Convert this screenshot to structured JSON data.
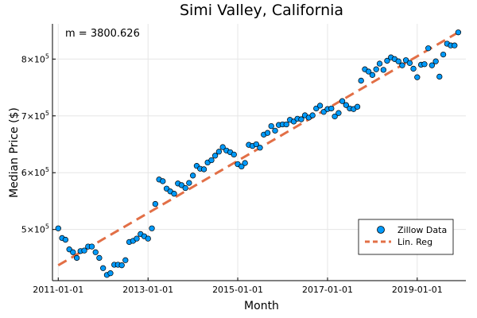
{
  "chart_data": {
    "type": "scatter",
    "title": "Simi Valley, California",
    "xlabel": "Month",
    "ylabel": "Median Price ($)",
    "annotation": "m = 3800.626",
    "xlim": [
      "2010-11-15",
      "2020-02-01"
    ],
    "ylim": [
      410000,
      862000
    ],
    "x_ticks": [
      "2011-01-01",
      "2013-01-01",
      "2015-01-01",
      "2017-01-01",
      "2019-01-01"
    ],
    "y_ticks": [
      {
        "value": 500000,
        "mantissa": "5",
        "exponent": "5"
      },
      {
        "value": 600000,
        "mantissa": "6",
        "exponent": "5"
      },
      {
        "value": 700000,
        "mantissa": "7",
        "exponent": "5"
      },
      {
        "value": 800000,
        "mantissa": "8",
        "exponent": "5"
      }
    ],
    "grid": true,
    "legend_position": "bottom-right",
    "series": [
      {
        "name": "Zillow Data",
        "kind": "scatter",
        "color": "#009AFA",
        "x": [
          "2011-01-01",
          "2011-02-01",
          "2011-03-01",
          "2011-04-01",
          "2011-05-01",
          "2011-06-01",
          "2011-07-01",
          "2011-08-01",
          "2011-09-01",
          "2011-10-01",
          "2011-11-01",
          "2011-12-01",
          "2012-01-01",
          "2012-02-01",
          "2012-03-01",
          "2012-04-01",
          "2012-05-01",
          "2012-06-01",
          "2012-07-01",
          "2012-08-01",
          "2012-09-01",
          "2012-10-01",
          "2012-11-01",
          "2012-12-01",
          "2013-01-01",
          "2013-02-01",
          "2013-03-01",
          "2013-04-01",
          "2013-05-01",
          "2013-06-01",
          "2013-07-01",
          "2013-08-01",
          "2013-09-01",
          "2013-10-01",
          "2013-11-01",
          "2013-12-01",
          "2014-01-01",
          "2014-02-01",
          "2014-03-01",
          "2014-04-01",
          "2014-05-01",
          "2014-06-01",
          "2014-07-01",
          "2014-08-01",
          "2014-09-01",
          "2014-10-01",
          "2014-11-01",
          "2014-12-01",
          "2015-01-01",
          "2015-02-01",
          "2015-03-01",
          "2015-04-01",
          "2015-05-01",
          "2015-06-01",
          "2015-07-01",
          "2015-08-01",
          "2015-09-01",
          "2015-10-01",
          "2015-11-01",
          "2015-12-01",
          "2016-01-01",
          "2016-02-01",
          "2016-03-01",
          "2016-04-01",
          "2016-05-01",
          "2016-06-01",
          "2016-07-01",
          "2016-08-01",
          "2016-09-01",
          "2016-10-01",
          "2016-11-01",
          "2016-12-01",
          "2017-01-01",
          "2017-02-01",
          "2017-03-01",
          "2017-04-01",
          "2017-05-01",
          "2017-06-01",
          "2017-07-01",
          "2017-08-01",
          "2017-09-01",
          "2017-10-01",
          "2017-11-01",
          "2017-12-01",
          "2018-01-01",
          "2018-02-01",
          "2018-03-01",
          "2018-04-01",
          "2018-05-01",
          "2018-06-01",
          "2018-07-01",
          "2018-08-01",
          "2018-09-01",
          "2018-10-01",
          "2018-11-01",
          "2018-12-01",
          "2019-01-01",
          "2019-02-01",
          "2019-03-01",
          "2019-04-01",
          "2019-05-01",
          "2019-06-01",
          "2019-07-01",
          "2019-08-01",
          "2019-09-01",
          "2019-10-01",
          "2019-11-01",
          "2019-12-01"
        ],
        "y": [
          502000,
          485000,
          482000,
          465000,
          460000,
          450000,
          462000,
          463000,
          470000,
          470000,
          460000,
          450000,
          432000,
          420000,
          423000,
          438000,
          438000,
          437000,
          446000,
          478000,
          480000,
          484000,
          492000,
          488000,
          484000,
          502000,
          545000,
          588000,
          585000,
          572000,
          567000,
          563000,
          581000,
          578000,
          573000,
          582000,
          595000,
          612000,
          607000,
          606000,
          618000,
          622000,
          630000,
          637000,
          645000,
          639000,
          636000,
          632000,
          615000,
          611000,
          617000,
          649000,
          647000,
          650000,
          644000,
          667000,
          670000,
          682000,
          674000,
          684000,
          685000,
          685000,
          693000,
          690000,
          695000,
          694000,
          701000,
          697000,
          701000,
          713000,
          718000,
          707000,
          712000,
          713000,
          699000,
          705000,
          726000,
          719000,
          713000,
          712000,
          716000,
          762000,
          782000,
          778000,
          772000,
          782000,
          792000,
          781000,
          797000,
          803000,
          800000,
          796000,
          789000,
          798000,
          793000,
          783000,
          768000,
          790000,
          791000,
          819000,
          789000,
          796000,
          769000,
          808000,
          827000,
          824000,
          824000,
          847000
        ]
      },
      {
        "name": "Lin. Reg",
        "kind": "line",
        "style": "dashed",
        "color": "#E26F46",
        "x": [
          "2011-01-01",
          "2019-12-01"
        ],
        "y": [
          437000,
          847000
        ]
      }
    ]
  }
}
